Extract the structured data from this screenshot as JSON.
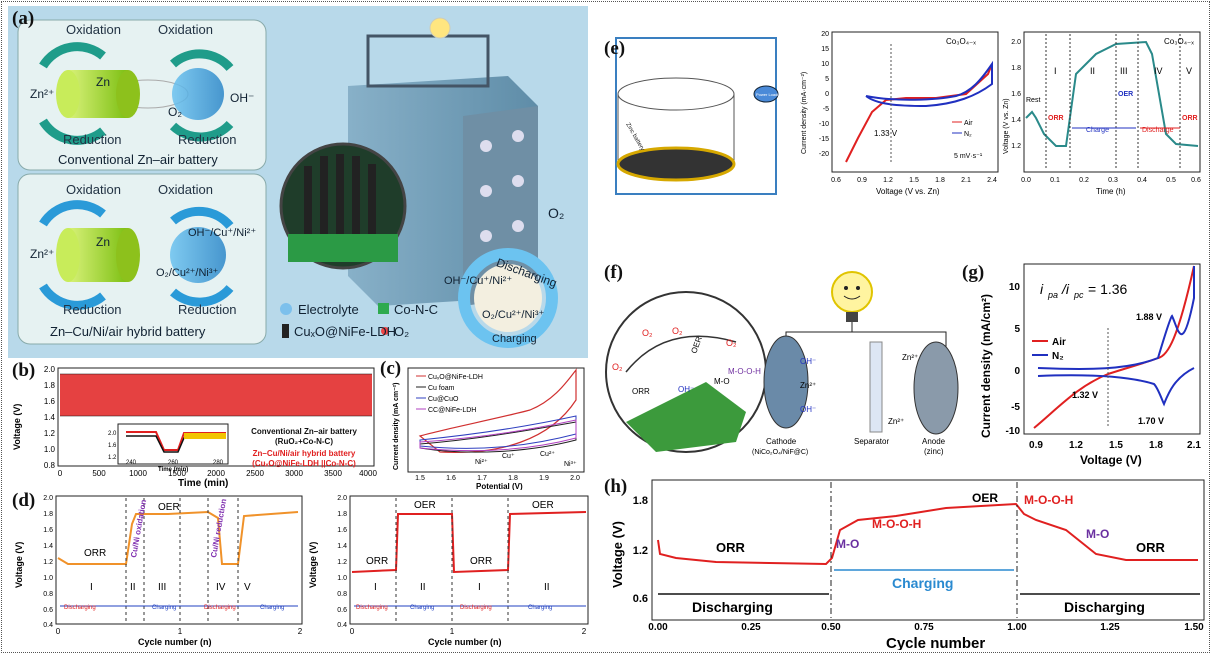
{
  "panel_labels": [
    "(a)",
    "(b)",
    "(c)",
    "(d)",
    "(e)",
    "(f)",
    "(g)",
    "(h)"
  ],
  "panel_a": {
    "conventional": {
      "oxidation_left": "Oxidation",
      "oxidation_right": "Oxidation",
      "reduction_left": "Reduction",
      "reduction_right": "Reduction",
      "zn2": "Zn²⁺",
      "zn": "Zn",
      "o2": "O₂",
      "oh": "OH⁻",
      "caption": "Conventional Zn–air battery"
    },
    "hybrid": {
      "oxidation_left": "Oxidation",
      "oxidation_right": "Oxidation",
      "reduction_left": "Reduction",
      "reduction_right": "Reduction",
      "zn2": "Zn²⁺",
      "zn": "Zn",
      "top_species": "OH⁻/Cu⁺/Ni²⁺",
      "bottom_species": "O₂/Cu²⁺/Ni³⁺",
      "caption": "Zn–Cu/Ni/air hybrid battery"
    },
    "legend": {
      "electrolyte": "Electrolyte",
      "conc": "Co-N-C",
      "cuxo": "CuₓO@NiFe-LDH",
      "o2": "O₂"
    },
    "cycle": {
      "discharging": "Discharging",
      "charging": "Charging",
      "top": "OH⁻/Cu⁺/Ni²⁺",
      "bottom": "O₂/Cu²⁺/Ni³⁺"
    },
    "o2_label": "O₂",
    "colors": {
      "bg": "#a9d0e6",
      "zn": "#9bd21c",
      "arrow": "#1f9c8a",
      "ring": "#3aa7dc"
    }
  },
  "panel_b": {
    "ylabel": "Voltage (V)",
    "xlabel": "Time (min)",
    "yticks": [
      "2.0",
      "1.8",
      "1.6",
      "1.4",
      "1.2",
      "1.0",
      "0.8"
    ],
    "xticks": [
      "0",
      "500",
      "1000",
      "1500",
      "2000",
      "2500",
      "3000",
      "3500",
      "4000"
    ],
    "inset": {
      "yticks": [
        "2.0",
        "1.6",
        "1.2"
      ],
      "xticks": [
        "240",
        "260",
        "280"
      ],
      "xlabel": "Time (min)"
    },
    "legend": {
      "line1": "Conventional Zn–air battery",
      "line2": "(RuO₂+Co-N-C)",
      "line3": "Zn–Cu/Ni/air hybrid battery",
      "line4": "(CuₓO@NiFe-LDH ||Co-N-C)"
    },
    "colors": {
      "conv": "#111111",
      "hybrid": "#e02020"
    }
  },
  "panel_c": {
    "ylabel": "Current density (mA cm⁻²)",
    "xlabel": "Potential (V)",
    "xticks": [
      "1.5",
      "1.6",
      "1.7",
      "1.8",
      "1.9",
      "2.0"
    ],
    "legend": [
      "CuₓO@NiFe-LDH",
      "Cu foam",
      "Cu@CuO",
      "CC@NiFe-LDH"
    ],
    "legend_colors": [
      "#d03030",
      "#222222",
      "#3040c0",
      "#b040c0"
    ],
    "annotations": {
      "ni2": "Ni²⁺",
      "cu_plus": "Cu⁺",
      "cu2": "Cu²⁺",
      "ni3": "Ni³⁺"
    }
  },
  "panel_d": {
    "left": {
      "ylabel": "Voltage (V)",
      "xlabel": "Cycle number (n)",
      "yticks": [
        "2.0",
        "1.8",
        "1.6",
        "1.4",
        "1.2",
        "1.0",
        "0.8",
        "0.6",
        "0.4"
      ],
      "xticks": [
        "0",
        "1",
        "2"
      ],
      "orr": "ORR",
      "oer": "OER",
      "stages": [
        "I",
        "II",
        "III",
        "IV",
        "V"
      ],
      "cu_ox": "Cu/Ni oxidation",
      "cu_red": "Cu/Ni reduction",
      "bar": [
        "Discharging",
        "Charging",
        "Discharging",
        "Charging"
      ]
    },
    "right": {
      "ylabel": "Voltage (V)",
      "xlabel": "Cycle number (n)",
      "yticks": [
        "2.0",
        "1.8",
        "1.6",
        "1.4",
        "1.2",
        "1.0",
        "0.8",
        "0.6",
        "0.4"
      ],
      "xticks": [
        "0",
        "1",
        "2"
      ],
      "orr": "ORR",
      "oer": "OER",
      "stages": [
        "I",
        "II",
        "I",
        "II"
      ],
      "bar": [
        "Discharging",
        "Charging",
        "Discharging",
        "Charging"
      ]
    }
  },
  "panel_e": {
    "schematic": {
      "zinc": "Zinc battery",
      "lamp": "Power Loading"
    },
    "cv": {
      "ylabel": "Current density (mA·cm⁻²)",
      "xlabel": "Voltage (V vs. Zn)",
      "title": "Co₃O₄₋ₓ",
      "xticks": [
        "0.6",
        "0.9",
        "1.2",
        "1.5",
        "1.8",
        "2.1",
        "2.4"
      ],
      "yticks": [
        "20",
        "15",
        "10",
        "5",
        "0",
        "-5",
        "-10",
        "-15",
        "-20"
      ],
      "v133": "1.33 V",
      "legend": [
        "Air",
        "N₂"
      ],
      "scan": "5 mV·s⁻¹"
    },
    "gcd": {
      "ylabel": "Voltage (V vs. Zn)",
      "xlabel": "Time (h)",
      "title": "Co₃O₄₋ₓ",
      "xticks": [
        "0.0",
        "0.1",
        "0.2",
        "0.3",
        "0.4",
        "0.5",
        "0.6"
      ],
      "yticks": [
        "2.0",
        "1.8",
        "1.6",
        "1.4",
        "1.2"
      ],
      "stages": [
        "I",
        "II",
        "III",
        "IV",
        "V"
      ],
      "rest": "Rest",
      "orr1": "ORR",
      "oer": "OER",
      "orr2": "ORR",
      "charge": "Charge",
      "discharge": "Discharge"
    }
  },
  "panel_f": {
    "o2": "O₂",
    "oer": "OER",
    "orr": "ORR",
    "oh": "OH⁻",
    "zn2": "Zn²⁺",
    "mo": "M-O",
    "mooh": "M-O-O-H",
    "cathode": "Cathode",
    "cathode2": "(NiCo₂O₄/NiF@C)",
    "separator": "Separator",
    "anode": "Anode",
    "anode2": "(zinc)"
  },
  "panel_g": {
    "ylabel": "Current density (mA/cm²)",
    "xlabel": "Voltage (V)",
    "ratio": "i",
    "ratio_value": "= 1.36",
    "xticks": [
      "0.9",
      "1.2",
      "1.5",
      "1.8",
      "2.1"
    ],
    "yticks": [
      "10",
      "5",
      "0",
      "-5",
      "-10"
    ],
    "v188": "1.88 V",
    "v132": "1.32 V",
    "v170": "1.70 V",
    "legend": [
      "Air",
      "N₂"
    ]
  },
  "panel_h": {
    "ylabel": "Voltage (V)",
    "xlabel": "Cycle number",
    "xticks": [
      "0.00",
      "0.25",
      "0.50",
      "0.75",
      "1.00",
      "1.25",
      "1.50"
    ],
    "yticks": [
      "1.8",
      "1.2",
      "0.6"
    ],
    "orr_left": "ORR",
    "mo_left": "M-O",
    "mooh_left": "M-O-O-H",
    "oer": "OER",
    "mooh_right": "M-O-O-H",
    "mo_right": "M-O",
    "orr_right": "ORR",
    "discharging_left": "Discharging",
    "charging": "Charging",
    "discharging_right": "Discharging"
  }
}
